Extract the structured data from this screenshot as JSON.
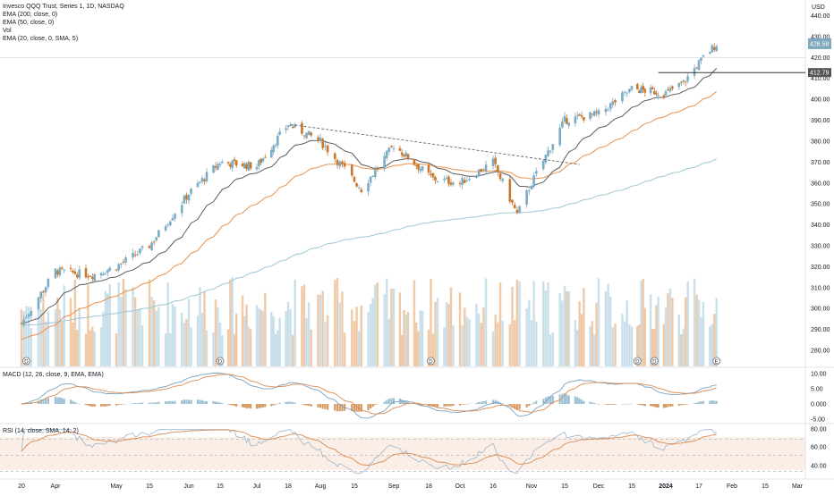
{
  "header": {
    "symbol_title": "Invesco QQQ Trust, Series 1, 1D, NASDAQ",
    "indicator_lines": [
      "EMA (200, close, 0)",
      "EMA (50, close, 0)",
      "Vol",
      "EMA (20, close, 0, SMA, 5)"
    ],
    "currency": "USD"
  },
  "price_axis": {
    "ticks": [
      "440.00",
      "430.00",
      "420.00",
      "410.00",
      "400.00",
      "390.00",
      "380.00",
      "370.00",
      "360.00",
      "350.00",
      "340.00",
      "330.00",
      "320.00",
      "310.00",
      "300.00",
      "290.00",
      "280.00"
    ],
    "last_price_badge": "426.58",
    "level_badge": "412.79"
  },
  "macd": {
    "label": "MACD (12, 26, close, 9, EMA, EMA)",
    "ticks": [
      "10.00",
      "5.00",
      "0.000",
      "-5.00"
    ]
  },
  "rsi": {
    "label": "RSI (14, close, SMA, 14, 2)",
    "ticks": [
      "80.00",
      "60.00",
      "40.00"
    ]
  },
  "time_axis": {
    "labels": [
      "20",
      "Apr",
      "May",
      "15",
      "Jun",
      "15",
      "Jul",
      "18",
      "Aug",
      "15",
      "Sep",
      "18",
      "Oct",
      "16",
      "Nov",
      "15",
      "Dec",
      "15",
      "2024",
      "17",
      "Feb",
      "15",
      "Mar"
    ]
  },
  "event_markers": [
    "D",
    "D",
    "D",
    "D",
    "D",
    "E"
  ],
  "colors": {
    "up": "#7bacc6",
    "down": "#c77a2d",
    "vol_up": "#c9dfea",
    "vol_down": "#f0c9a6",
    "ema20": "#5b5b5b",
    "ema50": "#e8914c",
    "ema200": "#9fc6d4",
    "macd_line": "#7aa2c0",
    "signal_line": "#d98b52",
    "rsi_line": "#9bb6cc",
    "rsi_ma": "#d98b52",
    "rsi_band": "#fbeee6"
  },
  "chart_data": {
    "type": "candlestick",
    "title": "Invesco QQQ Trust, Series 1, 1D, NASDAQ",
    "ylim": [
      275,
      445
    ],
    "price_anchors": [
      {
        "date": "2023-03-20",
        "close": 293
      },
      {
        "date": "2023-04-03",
        "close": 318
      },
      {
        "date": "2023-04-20",
        "close": 316
      },
      {
        "date": "2023-05-01",
        "close": 320
      },
      {
        "date": "2023-05-15",
        "close": 330
      },
      {
        "date": "2023-06-01",
        "close": 355
      },
      {
        "date": "2023-06-15",
        "close": 370
      },
      {
        "date": "2023-07-03",
        "close": 368
      },
      {
        "date": "2023-07-18",
        "close": 388
      },
      {
        "date": "2023-08-01",
        "close": 380
      },
      {
        "date": "2023-08-18",
        "close": 357
      },
      {
        "date": "2023-09-01",
        "close": 378
      },
      {
        "date": "2023-09-20",
        "close": 362
      },
      {
        "date": "2023-10-02",
        "close": 360
      },
      {
        "date": "2023-10-16",
        "close": 370
      },
      {
        "date": "2023-10-26",
        "close": 345
      },
      {
        "date": "2023-11-01",
        "close": 360
      },
      {
        "date": "2023-11-15",
        "close": 390
      },
      {
        "date": "2023-12-01",
        "close": 393
      },
      {
        "date": "2023-12-15",
        "close": 405
      },
      {
        "date": "2024-01-02",
        "close": 403
      },
      {
        "date": "2024-01-10",
        "close": 408
      },
      {
        "date": "2024-01-19",
        "close": 420
      },
      {
        "date": "2024-01-25",
        "close": 426.58
      }
    ],
    "ema20_end": 413,
    "ema50_end": 401,
    "ema200_end": 369,
    "trendline": [
      {
        "date": "2023-07-19",
        "value": 388
      },
      {
        "date": "2023-11-10",
        "value": 368
      }
    ],
    "resistance_level": 412.79,
    "last_close": 426.58
  }
}
